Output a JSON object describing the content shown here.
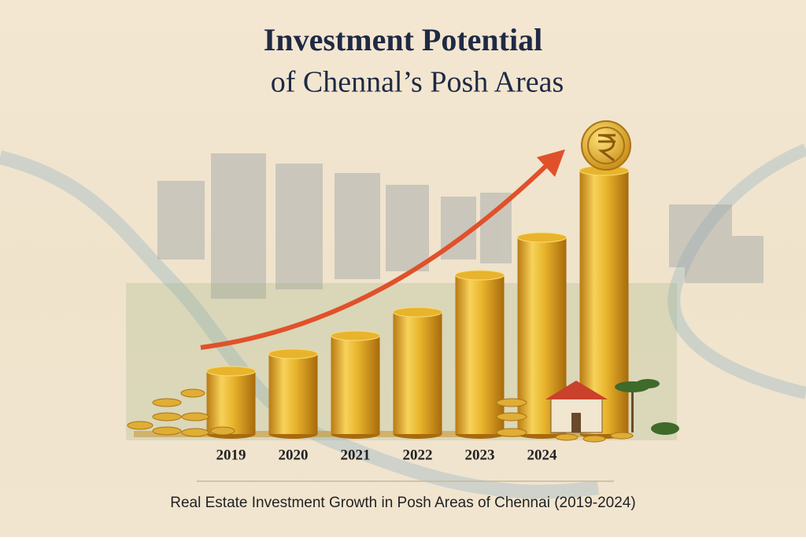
{
  "chart_data": {
    "type": "bar",
    "title": "Investment Potential",
    "subtitle": "of Chennal’s Posh Areas",
    "caption": "Real Estate Investment Growth in Posh Areas of Chennai (2019-2024)",
    "categories": [
      "2019",
      "2020",
      "2021",
      "2022",
      "2023",
      "2024",
      null
    ],
    "values": [
      80,
      102,
      125,
      155,
      202,
      250,
      335
    ],
    "color": "#e8b42c",
    "ylim": [
      0,
      400
    ]
  }
}
